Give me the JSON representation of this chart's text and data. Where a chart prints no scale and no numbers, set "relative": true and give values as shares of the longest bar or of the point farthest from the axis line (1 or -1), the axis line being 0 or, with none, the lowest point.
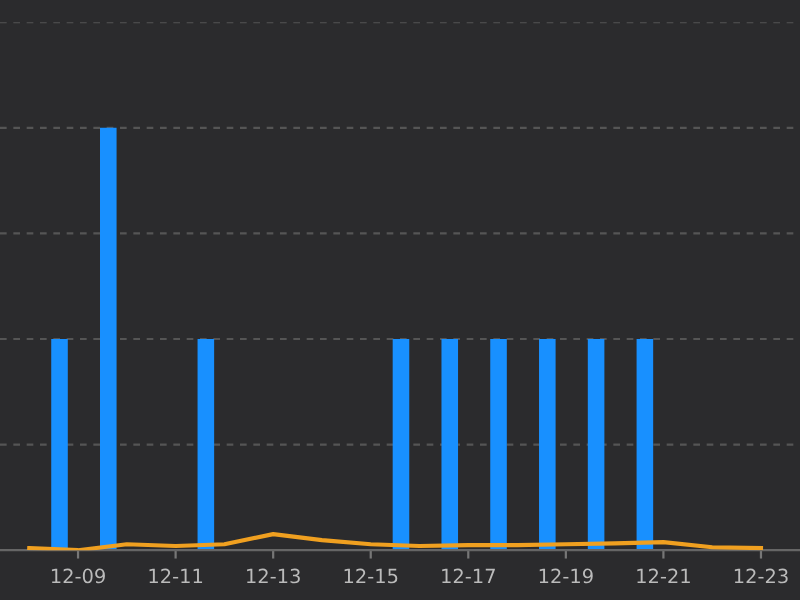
{
  "chart_data": {
    "type": "bar",
    "relative": true,
    "grid": "y",
    "categories": [
      null,
      "12-09",
      null,
      "12-11",
      null,
      "12-13",
      null,
      "12-15",
      null,
      "12-17",
      null,
      "12-19",
      null,
      "12-21",
      null,
      "12-23"
    ],
    "series": [
      {
        "color": "#1890ff",
        "values": [
          null,
          0.5,
          1,
          null,
          0.5,
          null,
          null,
          null,
          0.5,
          0.5,
          0.5,
          0.5,
          0.5,
          0.5,
          null,
          null
        ]
      },
      {
        "type": "line",
        "color": "#f0a020",
        "values": [
          0.005,
          0,
          0.014,
          0.01,
          0.014,
          0.038,
          0.024,
          0.014,
          0.01,
          0.012,
          0.012,
          0.014,
          0.016,
          0.019,
          0.007,
          0.005
        ]
      }
    ]
  }
}
